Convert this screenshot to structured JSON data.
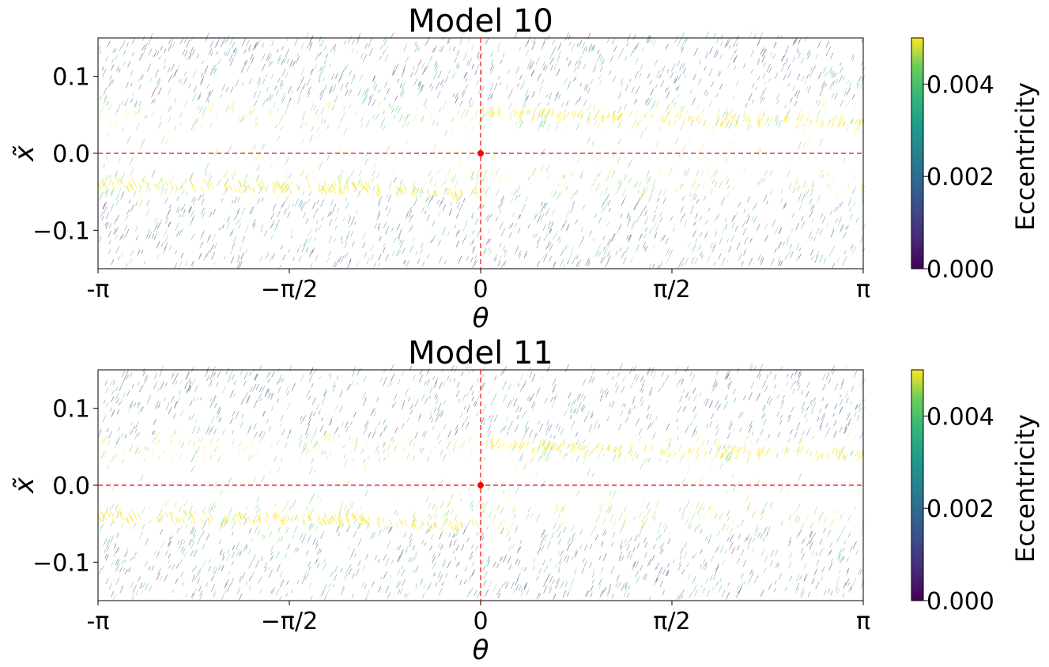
{
  "chart_data": [
    {
      "type": "scatter",
      "title": "Model 10",
      "xlabel": "θ",
      "ylabel": "x̃",
      "xlim": [
        -3.14159,
        3.14159
      ],
      "ylim": [
        -0.15,
        0.15
      ],
      "x_ticks": [
        {
          "value": -3.14159,
          "label": "-π"
        },
        {
          "value": -1.5708,
          "label": "−π/2"
        },
        {
          "value": 0,
          "label": "0"
        },
        {
          "value": 1.5708,
          "label": "π/2"
        },
        {
          "value": 3.14159,
          "label": "π"
        }
      ],
      "y_ticks": [
        {
          "value": -0.1,
          "label": "−0.1"
        },
        {
          "value": 0.0,
          "label": "0.0"
        },
        {
          "value": 0.1,
          "label": "0.1"
        }
      ],
      "reference_lines": {
        "horizontal_y": 0.0,
        "vertical_x": 0.0,
        "color": "#ff0000",
        "style": "dashed"
      },
      "marker_point": {
        "x": 0,
        "y": 0,
        "color": "#ff0000"
      },
      "colorbar": {
        "label": "Eccentricity",
        "colormap": "viridis",
        "range": [
          0.0,
          0.005
        ],
        "ticks": [
          {
            "value": 0.0,
            "label": "0.000"
          },
          {
            "value": 0.002,
            "label": "0.002"
          },
          {
            "value": 0.004,
            "label": "0.004"
          }
        ]
      },
      "grid": false
    },
    {
      "type": "scatter",
      "title": "Model 11",
      "xlabel": "θ",
      "ylabel": "x̃",
      "xlim": [
        -3.14159,
        3.14159
      ],
      "ylim": [
        -0.15,
        0.15
      ],
      "x_ticks": [
        {
          "value": -3.14159,
          "label": "-π"
        },
        {
          "value": -1.5708,
          "label": "−π/2"
        },
        {
          "value": 0,
          "label": "0"
        },
        {
          "value": 1.5708,
          "label": "π/2"
        },
        {
          "value": 3.14159,
          "label": "π"
        }
      ],
      "y_ticks": [
        {
          "value": -0.1,
          "label": "−0.1"
        },
        {
          "value": 0.0,
          "label": "0.0"
        },
        {
          "value": 0.1,
          "label": "0.1"
        }
      ],
      "reference_lines": {
        "horizontal_y": 0.0,
        "vertical_x": 0.0,
        "color": "#ff0000",
        "style": "dashed"
      },
      "marker_point": {
        "x": 0,
        "y": 0,
        "color": "#ff0000"
      },
      "colorbar": {
        "label": "Eccentricity",
        "colormap": "viridis",
        "range": [
          0.0,
          0.005
        ],
        "ticks": [
          {
            "value": 0.0,
            "label": "0.000"
          },
          {
            "value": 0.002,
            "label": "0.002"
          },
          {
            "value": 0.004,
            "label": "0.004"
          }
        ]
      },
      "grid": false
    }
  ]
}
